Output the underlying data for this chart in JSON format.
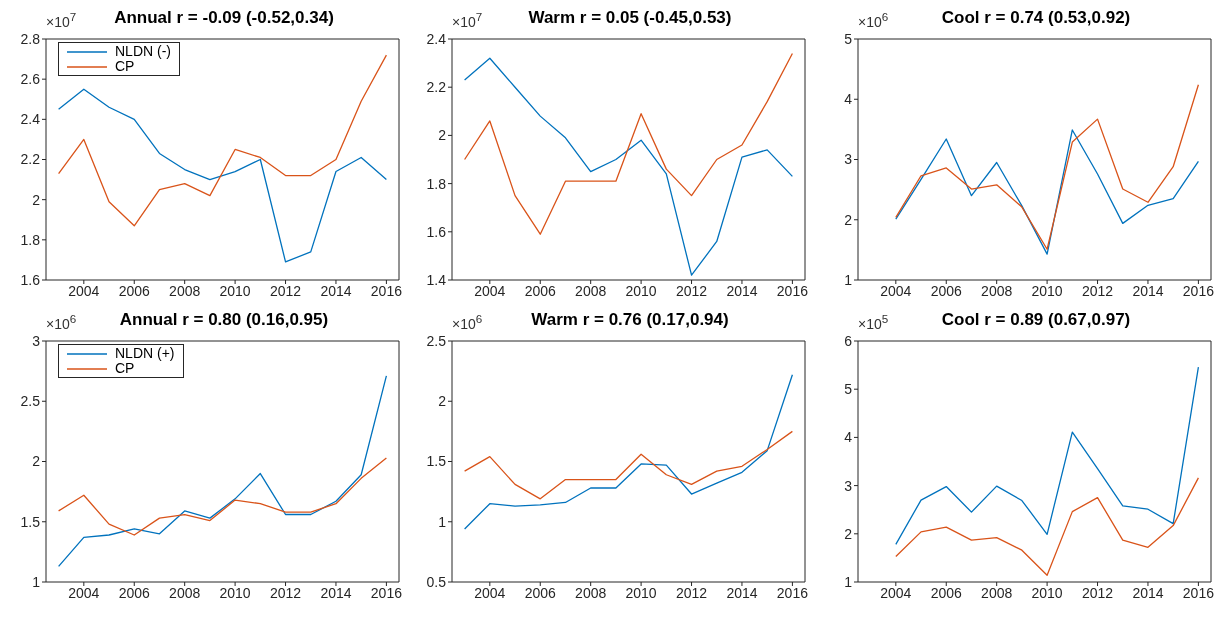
{
  "chart_data": [
    {
      "type": "line",
      "title": "Annual r = -0.09 (-0.52,0.34)",
      "annotations": [
        "×10$^{7}$"
      ],
      "xlim": [
        2002.5,
        2016.5
      ],
      "xticks": [
        2004,
        2006,
        2008,
        2010,
        2012,
        2014,
        2016
      ],
      "ylim": [
        1.6,
        2.8
      ],
      "yticks": [
        1.6,
        1.8,
        2,
        2.2,
        2.4,
        2.6,
        2.8
      ],
      "legend": "top left",
      "marker": "none",
      "line_style": "solid",
      "series": [
        {
          "name": "NLDN (-)",
          "color": "#0072bd",
          "x": [
            2003,
            2004,
            2005,
            2006,
            2007,
            2008,
            2009,
            2010,
            2011,
            2012,
            2013,
            2014,
            2015,
            2016
          ],
          "values": [
            2.45,
            2.55,
            2.46,
            2.4,
            2.23,
            2.15,
            2.1,
            2.14,
            2.2,
            1.69,
            1.74,
            2.14,
            2.21,
            2.1
          ]
        },
        {
          "name": "CP",
          "color": "#d95319",
          "x": [
            2003,
            2004,
            2005,
            2006,
            2007,
            2008,
            2009,
            2010,
            2011,
            2012,
            2013,
            2014,
            2015,
            2016
          ],
          "values": [
            2.13,
            2.3,
            1.99,
            1.87,
            2.05,
            2.08,
            2.02,
            2.25,
            2.21,
            2.12,
            2.12,
            2.2,
            2.49,
            2.72
          ]
        }
      ]
    },
    {
      "type": "line",
      "title": "Warm r = 0.05 (-0.45,0.53)",
      "annotations": [
        "×10$^{7}$"
      ],
      "xlim": [
        2002.5,
        2016.5
      ],
      "xticks": [
        2004,
        2006,
        2008,
        2010,
        2012,
        2014,
        2016
      ],
      "ylim": [
        1.4,
        2.4
      ],
      "yticks": [
        1.4,
        1.6,
        1.8,
        2,
        2.2,
        2.4
      ],
      "marker": "none",
      "line_style": "solid",
      "series": [
        {
          "color": "#0072bd",
          "x": [
            2003,
            2004,
            2005,
            2006,
            2007,
            2008,
            2009,
            2010,
            2011,
            2012,
            2013,
            2014,
            2015,
            2016
          ],
          "values": [
            2.23,
            2.32,
            2.2,
            2.08,
            1.99,
            1.85,
            1.9,
            1.98,
            1.84,
            1.42,
            1.56,
            1.91,
            1.94,
            1.83
          ]
        },
        {
          "color": "#d95319",
          "x": [
            2003,
            2004,
            2005,
            2006,
            2007,
            2008,
            2009,
            2010,
            2011,
            2012,
            2013,
            2014,
            2015,
            2016
          ],
          "values": [
            1.9,
            2.06,
            1.75,
            1.59,
            1.81,
            1.81,
            1.81,
            2.09,
            1.86,
            1.75,
            1.9,
            1.96,
            2.14,
            2.34
          ]
        }
      ]
    },
    {
      "type": "line",
      "title": "Cool r = 0.74 (0.53,0.92)",
      "annotations": [
        "×10$^{6}$"
      ],
      "xlim": [
        2002.5,
        2016.5
      ],
      "xticks": [
        2004,
        2006,
        2008,
        2010,
        2012,
        2014,
        2016
      ],
      "ylim": [
        1,
        5
      ],
      "yticks": [
        1,
        2,
        3,
        4,
        5
      ],
      "marker": "none",
      "line_style": "solid",
      "series": [
        {
          "color": "#0072bd",
          "x": [
            2004,
            2005,
            2006,
            2007,
            2008,
            2009,
            2010,
            2011,
            2012,
            2013,
            2014,
            2015,
            2016
          ],
          "values": [
            2.01,
            2.67,
            3.34,
            2.4,
            2.95,
            2.23,
            1.43,
            3.49,
            2.76,
            1.94,
            2.24,
            2.35,
            2.97
          ]
        },
        {
          "color": "#d95319",
          "x": [
            2004,
            2005,
            2006,
            2007,
            2008,
            2009,
            2010,
            2011,
            2012,
            2013,
            2014,
            2015,
            2016
          ],
          "values": [
            2.04,
            2.73,
            2.86,
            2.51,
            2.58,
            2.21,
            1.51,
            3.29,
            3.67,
            2.51,
            2.29,
            2.88,
            4.24
          ]
        }
      ]
    },
    {
      "type": "line",
      "title": "Annual r = 0.80 (0.16,0.95)",
      "annotations": [
        "×10$^{6}$"
      ],
      "xlim": [
        2002.5,
        2016.5
      ],
      "xticks": [
        2004,
        2006,
        2008,
        2010,
        2012,
        2014,
        2016
      ],
      "ylim": [
        1,
        3
      ],
      "yticks": [
        1,
        1.5,
        2,
        2.5,
        3
      ],
      "legend": "top left",
      "marker": "none",
      "line_style": "solid",
      "series": [
        {
          "name": "NLDN (+)",
          "color": "#0072bd",
          "x": [
            2003,
            2004,
            2005,
            2006,
            2007,
            2008,
            2009,
            2010,
            2011,
            2012,
            2013,
            2014,
            2015,
            2016
          ],
          "values": [
            1.13,
            1.37,
            1.39,
            1.44,
            1.4,
            1.59,
            1.53,
            1.69,
            1.9,
            1.56,
            1.56,
            1.67,
            1.89,
            2.71
          ]
        },
        {
          "name": "CP",
          "color": "#d95319",
          "x": [
            2003,
            2004,
            2005,
            2006,
            2007,
            2008,
            2009,
            2010,
            2011,
            2012,
            2013,
            2014,
            2015,
            2016
          ],
          "values": [
            1.59,
            1.72,
            1.48,
            1.39,
            1.53,
            1.56,
            1.51,
            1.68,
            1.65,
            1.58,
            1.58,
            1.65,
            1.86,
            2.03
          ]
        }
      ]
    },
    {
      "type": "line",
      "title": "Warm r = 0.76 (0.17,0.94)",
      "annotations": [
        "×10$^{6}$"
      ],
      "xlim": [
        2002.5,
        2016.5
      ],
      "xticks": [
        2004,
        2006,
        2008,
        2010,
        2012,
        2014,
        2016
      ],
      "ylim": [
        0.5,
        2.5
      ],
      "yticks": [
        0.5,
        1,
        1.5,
        2,
        2.5
      ],
      "marker": "none",
      "line_style": "solid",
      "series": [
        {
          "color": "#0072bd",
          "x": [
            2003,
            2004,
            2005,
            2006,
            2007,
            2008,
            2009,
            2010,
            2011,
            2012,
            2013,
            2014,
            2015,
            2016
          ],
          "values": [
            0.94,
            1.15,
            1.13,
            1.14,
            1.16,
            1.28,
            1.28,
            1.48,
            1.47,
            1.23,
            1.32,
            1.41,
            1.59,
            2.22
          ]
        },
        {
          "color": "#d95319",
          "x": [
            2003,
            2004,
            2005,
            2006,
            2007,
            2008,
            2009,
            2010,
            2011,
            2012,
            2013,
            2014,
            2015,
            2016
          ],
          "values": [
            1.42,
            1.54,
            1.31,
            1.19,
            1.35,
            1.35,
            1.35,
            1.56,
            1.39,
            1.31,
            1.42,
            1.46,
            1.6,
            1.75
          ]
        }
      ]
    },
    {
      "type": "line",
      "title": "Cool r = 0.89 (0.67,0.97)",
      "annotations": [
        "×10$^{5}$"
      ],
      "xlim": [
        2002.5,
        2016.5
      ],
      "xticks": [
        2004,
        2006,
        2008,
        2010,
        2012,
        2014,
        2016
      ],
      "ylim": [
        1,
        6
      ],
      "yticks": [
        1,
        2,
        3,
        4,
        5,
        6
      ],
      "marker": "none",
      "line_style": "solid",
      "series": [
        {
          "color": "#0072bd",
          "x": [
            2004,
            2005,
            2006,
            2007,
            2008,
            2009,
            2010,
            2011,
            2012,
            2013,
            2014,
            2015,
            2016
          ],
          "values": [
            1.78,
            2.7,
            2.98,
            2.45,
            2.99,
            2.69,
            1.99,
            4.11,
            3.35,
            2.58,
            2.51,
            2.21,
            5.46
          ]
        },
        {
          "color": "#d95319",
          "x": [
            2004,
            2005,
            2006,
            2007,
            2008,
            2009,
            2010,
            2011,
            2012,
            2013,
            2014,
            2015,
            2016
          ],
          "values": [
            1.53,
            2.04,
            2.14,
            1.87,
            1.92,
            1.66,
            1.14,
            2.46,
            2.75,
            1.87,
            1.72,
            2.17,
            3.16
          ]
        }
      ]
    }
  ]
}
